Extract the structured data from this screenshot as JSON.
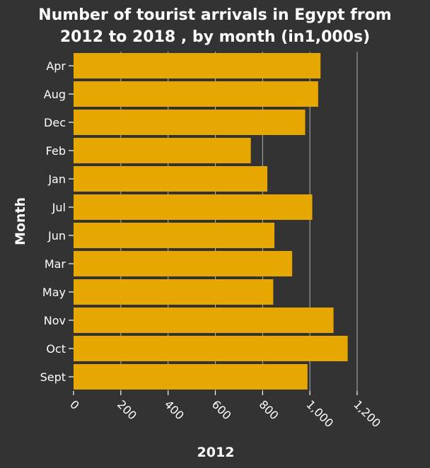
{
  "chart_data": {
    "type": "bar",
    "orientation": "horizontal",
    "title": "Number of tourist arrivals in Egypt from 2012 to 2018 , by month (in1,000s)",
    "title_lines": [
      "Number of tourist arrivals in Egypt from",
      "2012 to 2018 , by month (in1,000s)"
    ],
    "xlabel": "2012",
    "ylabel": "Month",
    "categories": [
      "Apr",
      "Aug",
      "Dec",
      "Feb",
      "Jan",
      "Jul",
      "Jun",
      "Mar",
      "May",
      "Nov",
      "Oct",
      "Sept"
    ],
    "values": [
      1045,
      1035,
      980,
      750,
      820,
      1010,
      850,
      925,
      845,
      1100,
      1160,
      990
    ],
    "xlim": [
      0,
      1200
    ],
    "xticks": [
      0,
      200,
      400,
      600,
      800,
      1000,
      1200
    ],
    "xtick_labels": [
      "0",
      "200",
      "400",
      "600",
      "800",
      "1,000",
      "1,200"
    ],
    "grid": "vertical",
    "bar_color": "#e6a800",
    "background_color": "#333333",
    "text_color": "#ffffff"
  }
}
